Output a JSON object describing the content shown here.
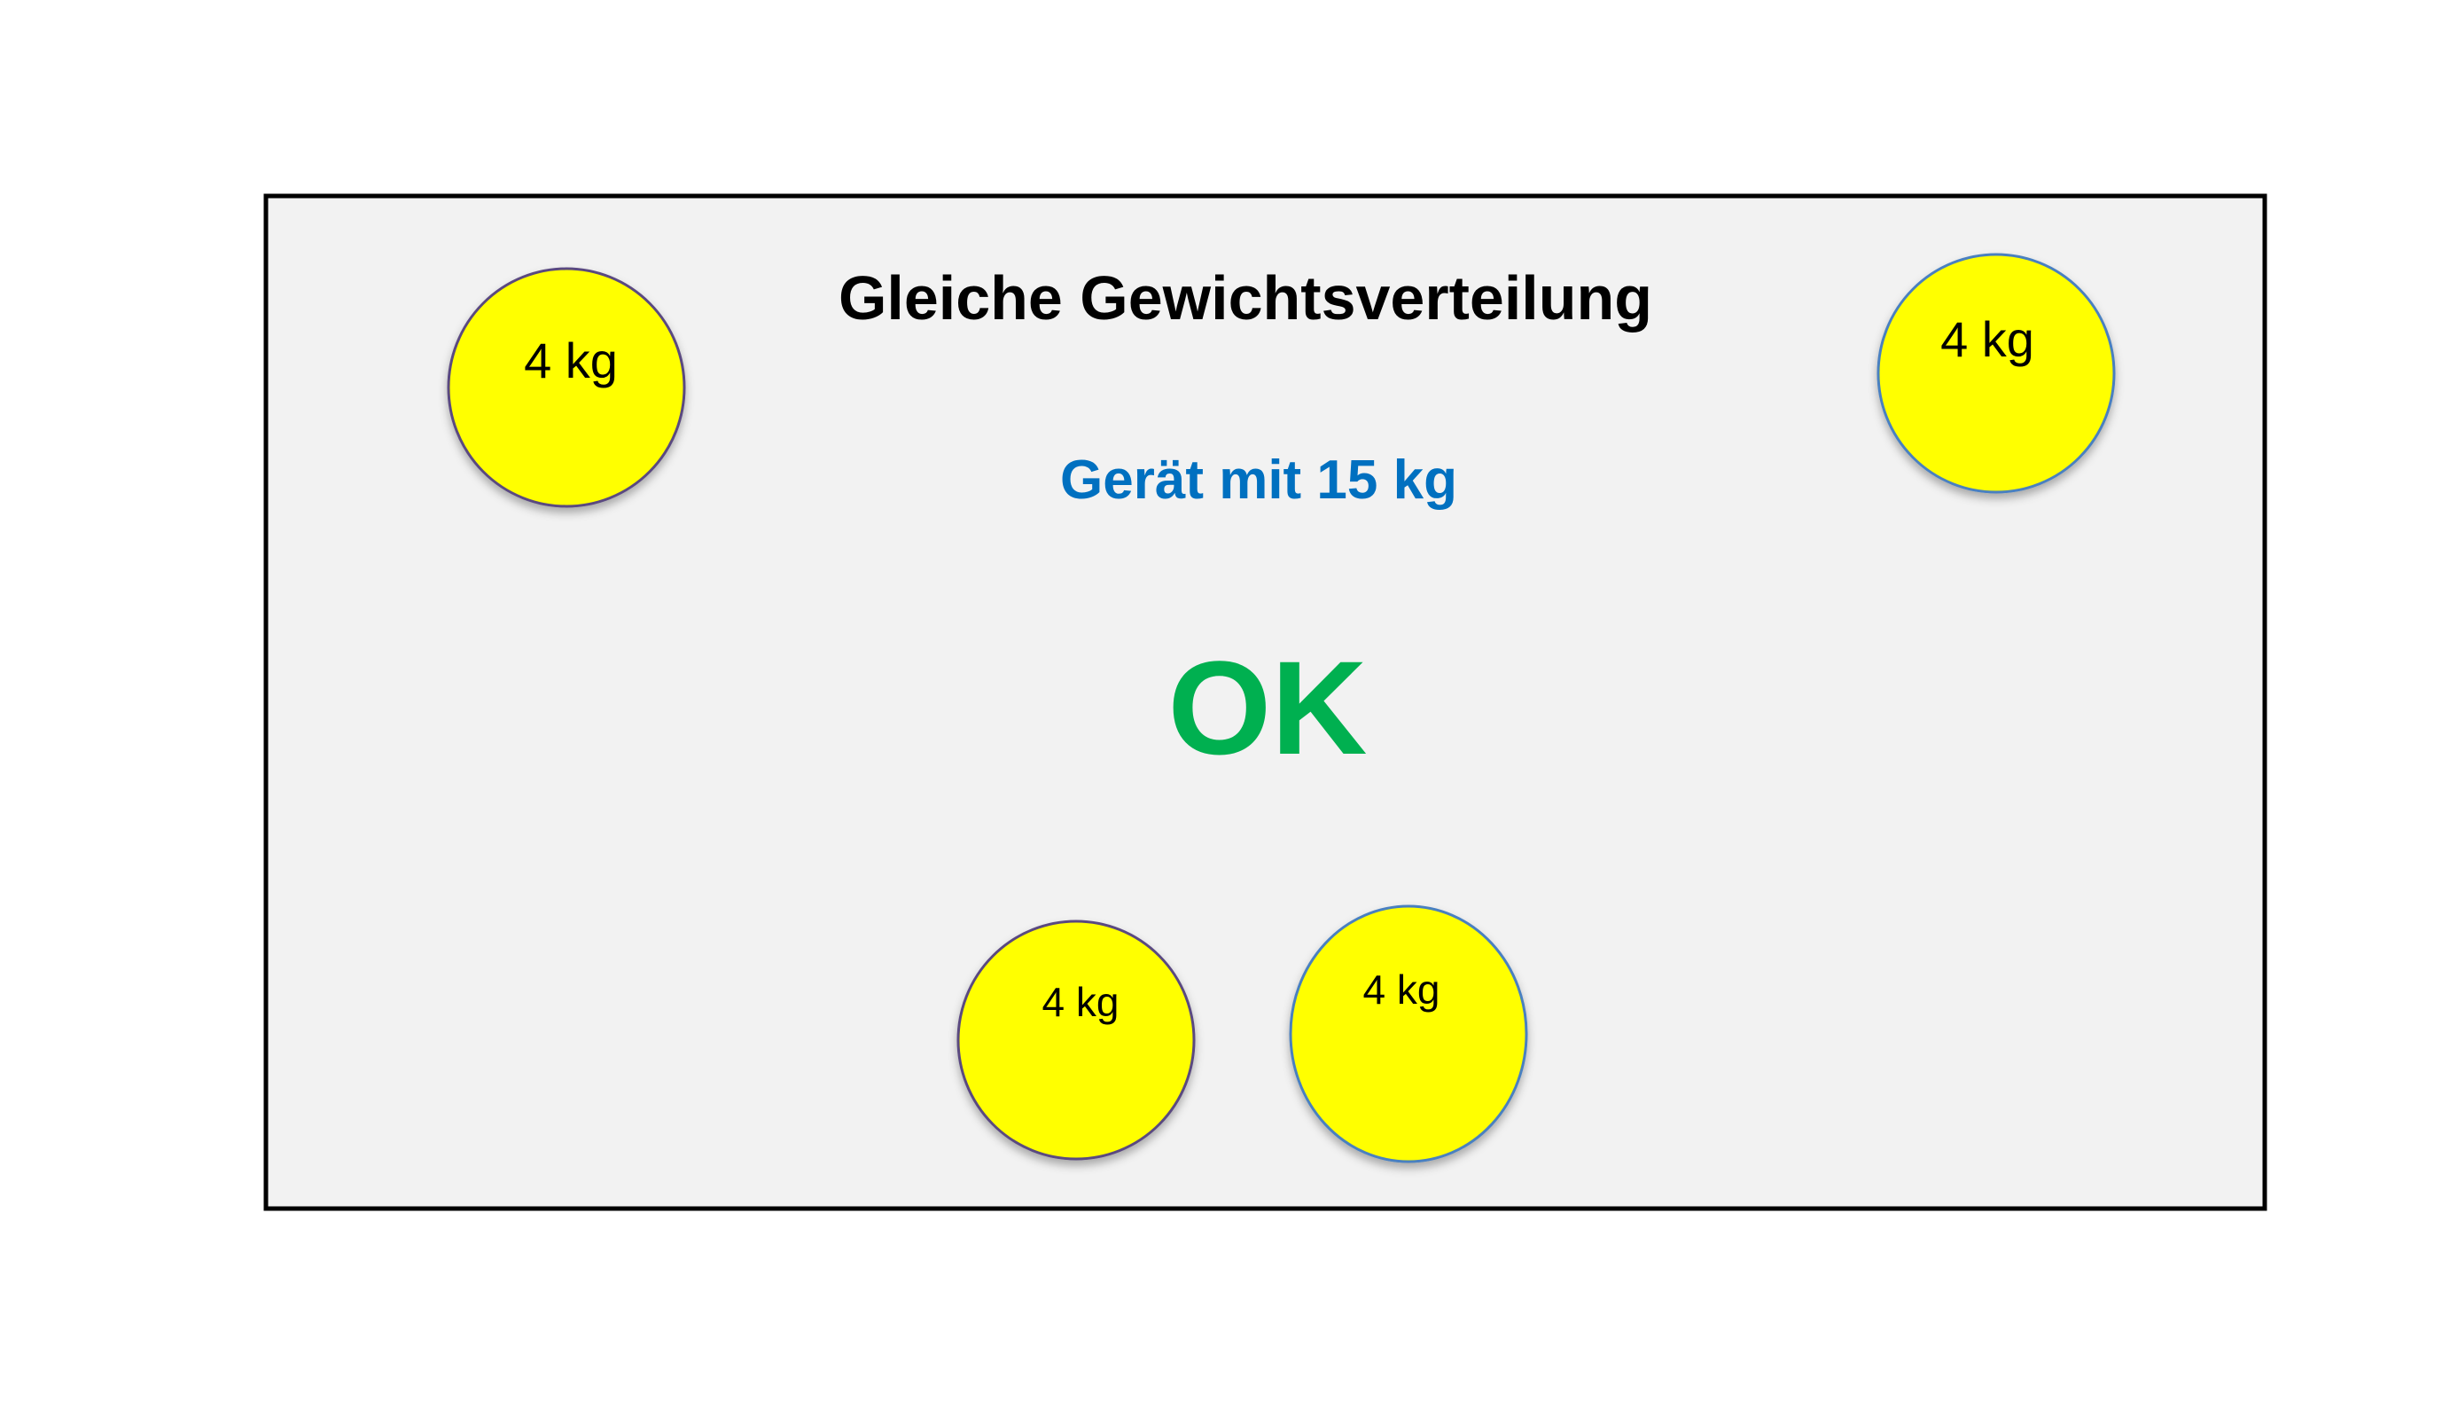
{
  "title": "Gleiche Gewichtsverteilung",
  "subtitle": "Gerät mit 15 kg",
  "status": "OK",
  "weights": [
    {
      "label": "4 kg"
    },
    {
      "label": "4 kg"
    },
    {
      "label": "4 kg"
    },
    {
      "label": "4 kg"
    }
  ],
  "colors": {
    "panel": "#f2f2f2",
    "border": "#000000",
    "weight_fill": "#ffff00",
    "subtitle": "#0070c0",
    "status": "#00b050"
  }
}
